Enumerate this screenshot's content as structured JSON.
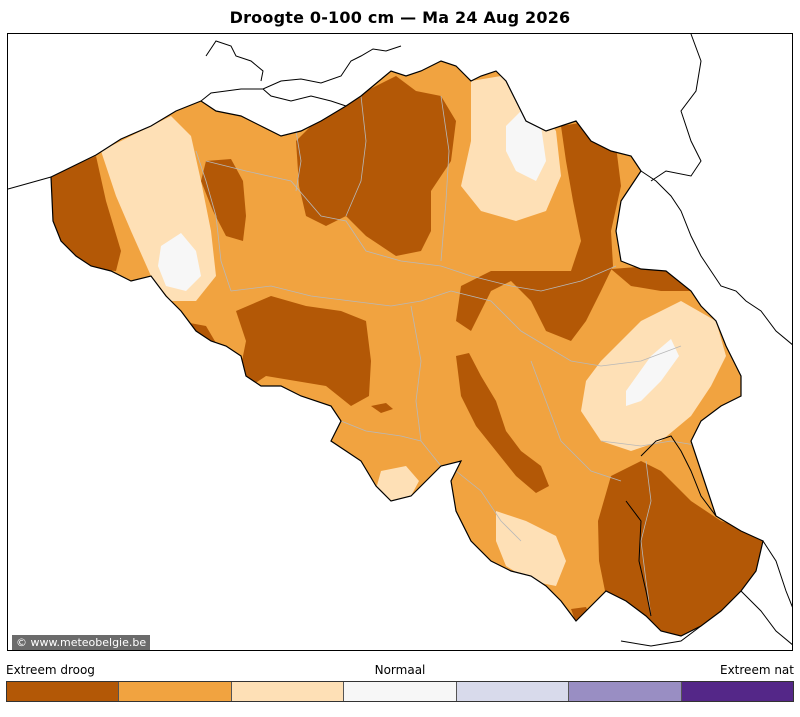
{
  "title": "Droogte 0-100 cm  —  Ma 24 Aug 2026",
  "credit": "© www.meteobelgie.be",
  "legend": {
    "left_label": "Extreem droog",
    "middle_label": "Normaal",
    "right_label": "Extreem nat",
    "classes": [
      {
        "color": "#b35806"
      },
      {
        "color": "#f1a340"
      },
      {
        "color": "#fee0b6"
      },
      {
        "color": "#f7f7f7"
      },
      {
        "color": "#d8daeb"
      },
      {
        "color": "#998ec3"
      },
      {
        "color": "#542788"
      }
    ]
  },
  "colors": {
    "extreme_dry": "#b35806",
    "dry": "#f1a340",
    "slightly_dry": "#fee0b6",
    "normal": "#f7f7f7"
  }
}
